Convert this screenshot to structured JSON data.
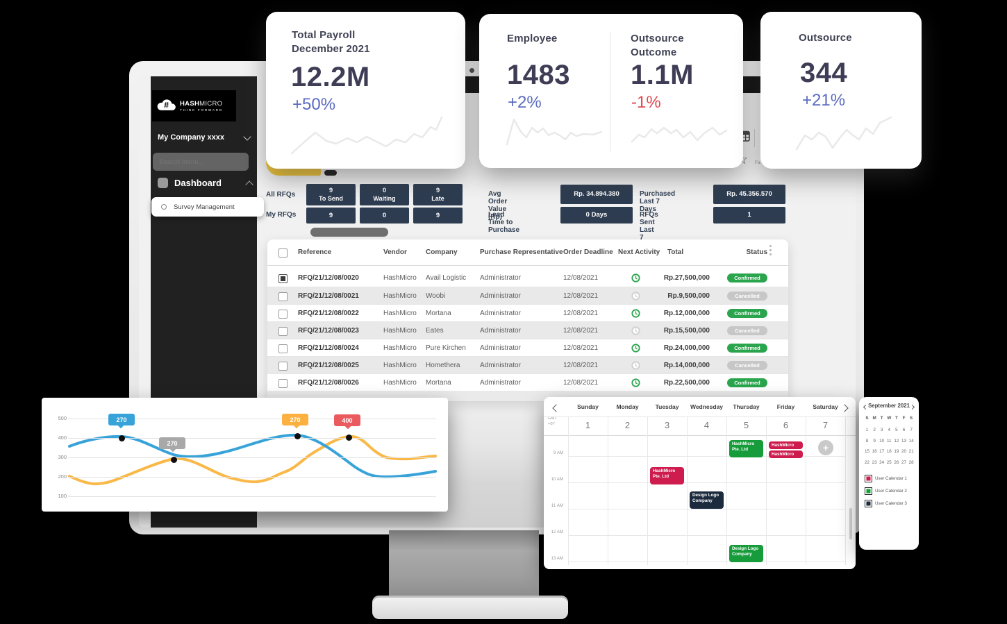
{
  "kpi": {
    "payroll": {
      "title_line1": "Total Payroll",
      "title_line2": "December 2021",
      "value": "12.2M",
      "delta": "+50%",
      "delta_color": "#5b6bc0"
    },
    "employee": {
      "title": "Employee",
      "value": "1483",
      "delta": "+2%",
      "delta_color": "#5b6bc0"
    },
    "outsource_outcome": {
      "title_line1": "Outsource",
      "title_line2": "Outcome",
      "value": "1.1M",
      "delta": "-1%",
      "delta_color": "#e0484f"
    },
    "outsource": {
      "title": "Outsource",
      "value": "344",
      "delta": "+21%",
      "delta_color": "#5b6bc0"
    }
  },
  "sidebar": {
    "brand_bold": "HASH",
    "brand_light": "MICRO",
    "tagline": "THINK FORWARD",
    "company": "My Company xxxx",
    "search_placeholder": "Search menu...",
    "dashboard": "Dashboard",
    "active_item": "Survey Management"
  },
  "stats": {
    "all_rfqs_label": "All RFQs",
    "my_rfqs_label": "My RFQs",
    "rfq_columns": [
      {
        "value": "9",
        "label": "To Send"
      },
      {
        "value": "0",
        "label": "Waiting"
      },
      {
        "value": "9",
        "label": "Late"
      }
    ],
    "my_values": [
      "9",
      "0",
      "9"
    ],
    "metrics": [
      {
        "label": "Avg Order Value (Rp)",
        "value": "Rp. 34.894.380"
      },
      {
        "label": "Lead Time to Purchase",
        "value": "0 Days"
      },
      {
        "label": "Purchased Last 7 Days",
        "value": "Rp. 45.356.570"
      },
      {
        "label": "RFQs Sent Last 7 Days",
        "value": "1"
      }
    ]
  },
  "table": {
    "columns": [
      "Reference",
      "Vendor",
      "Company",
      "Purchase Representative",
      "Order Deadline",
      "Next Activity",
      "Total",
      "Status"
    ],
    "rows": [
      {
        "checked": true,
        "reference": "RFQ/21/12/08/0020",
        "vendor": "HashMicro",
        "company": "Avail Logistic",
        "representative": "Administrator",
        "deadline": "12/08/2021",
        "activity": "active",
        "total": "Rp.27,500,000",
        "status": "Confirmed"
      },
      {
        "checked": false,
        "reference": "RFQ/21/12/08/0021",
        "vendor": "HashMicro",
        "company": "Woobi",
        "representative": "Administrator",
        "deadline": "12/08/2021",
        "activity": "inactive",
        "total": "Rp.9,500,000",
        "status": "Cancelled"
      },
      {
        "checked": false,
        "reference": "RFQ/21/12/08/0022",
        "vendor": "HashMicro",
        "company": "Mortana",
        "representative": "Administrator",
        "deadline": "12/08/2021",
        "activity": "active",
        "total": "Rp.12,000,000",
        "status": "Confirmed"
      },
      {
        "checked": false,
        "reference": "RFQ/21/12/08/0023",
        "vendor": "HashMicro",
        "company": "Eates",
        "representative": "Administrator",
        "deadline": "12/08/2021",
        "activity": "inactive",
        "total": "Rp.15,500,000",
        "status": "Cancelled"
      },
      {
        "checked": false,
        "reference": "RFQ/21/12/08/0024",
        "vendor": "HashMicro",
        "company": "Pure Kirchen",
        "representative": "Administrator",
        "deadline": "12/08/2021",
        "activity": "active",
        "total": "Rp.24,000,000",
        "status": "Confirmed"
      },
      {
        "checked": false,
        "reference": "RFQ/21/12/08/0025",
        "vendor": "HashMicro",
        "company": "Homethera",
        "representative": "Administrator",
        "deadline": "12/08/2021",
        "activity": "inactive",
        "total": "Rp.14,000,000",
        "status": "Cancelled"
      },
      {
        "checked": false,
        "reference": "RFQ/21/12/08/0026",
        "vendor": "HashMicro",
        "company": "Mortana",
        "representative": "Administrator",
        "deadline": "12/08/2021",
        "activity": "active",
        "total": "Rp.22,500,000",
        "status": "Confirmed"
      }
    ]
  },
  "chart_data": {
    "type": "line",
    "y_ticks": [
      "500",
      "400",
      "300",
      "200",
      "100"
    ],
    "grid": true,
    "series": [
      {
        "name": "series-blue",
        "color": "#38a3d8",
        "values": [
          355,
          400,
          345,
          310,
          330,
          415,
          300,
          205,
          220
        ]
      },
      {
        "name": "series-yellow",
        "color": "#f9b847",
        "values": [
          210,
          170,
          235,
          270,
          225,
          195,
          290,
          400,
          355,
          360
        ]
      }
    ],
    "point_labels": [
      {
        "value": "270",
        "badge_color": "#38a3d8"
      },
      {
        "value": "270",
        "badge_color": "#a8a8a8"
      },
      {
        "value": "270",
        "badge_color": "#fbb03f"
      },
      {
        "value": "400",
        "badge_color": "#ea5b5f"
      }
    ]
  },
  "calendar": {
    "timezone_line1": "GMT",
    "timezone_line2": "+07",
    "day_names": [
      "Sunday",
      "Monday",
      "Tuesday",
      "Wednesday",
      "Thursday",
      "Friday",
      "Saturday"
    ],
    "dates": [
      "1",
      "2",
      "3",
      "4",
      "5",
      "6",
      "7"
    ],
    "times": [
      "9 AM",
      "10 AM",
      "11 AM",
      "12 AM",
      "13 AM"
    ],
    "event_colors": {
      "green": "#179c3c",
      "red": "#cf1c4e",
      "dark": "#1c2a3d"
    },
    "events": [
      {
        "day": 4,
        "slot": 0.0,
        "color": "green",
        "lines": [
          "HashMicro",
          "Pte. Ltd"
        ]
      },
      {
        "day": 5,
        "slot": 0.06,
        "color": "red",
        "lines": [
          "HashMicro"
        ]
      },
      {
        "day": 5,
        "slot": 0.4,
        "color": "red",
        "lines": [
          "HashMicro"
        ]
      },
      {
        "day": 2,
        "slot": 1.03,
        "color": "red",
        "lines": [
          "HashMicro",
          "Pte. Ltd"
        ]
      },
      {
        "day": 3,
        "slot": 1.95,
        "color": "dark",
        "lines": [
          "Design Logo",
          "Company"
        ]
      },
      {
        "day": 4,
        "slot": 3.97,
        "color": "green",
        "lines": [
          "Design Logo",
          "Company"
        ]
      }
    ],
    "add_button_day": 6
  },
  "mini_calendar": {
    "title": "September 2021",
    "weekday_letters": [
      "S",
      "M",
      "T",
      "W",
      "T",
      "F",
      "S"
    ],
    "weeks": [
      [
        "1",
        "2",
        "3",
        "4",
        "5",
        "6",
        "7"
      ],
      [
        "8",
        "9",
        "10",
        "11",
        "12",
        "13",
        "14"
      ],
      [
        "15",
        "16",
        "17",
        "18",
        "19",
        "20",
        "21"
      ],
      [
        "22",
        "23",
        "24",
        "25",
        "26",
        "27",
        "28"
      ]
    ],
    "legend": [
      {
        "label": "User Calendar 1",
        "color": "#cf1c4e"
      },
      {
        "label": "User Calendar 2",
        "color": "#17a13c"
      },
      {
        "label": "User Calendar 3",
        "color": "#1c2a3d"
      }
    ]
  },
  "misc": {
    "favorites_fragment": "Fa"
  }
}
